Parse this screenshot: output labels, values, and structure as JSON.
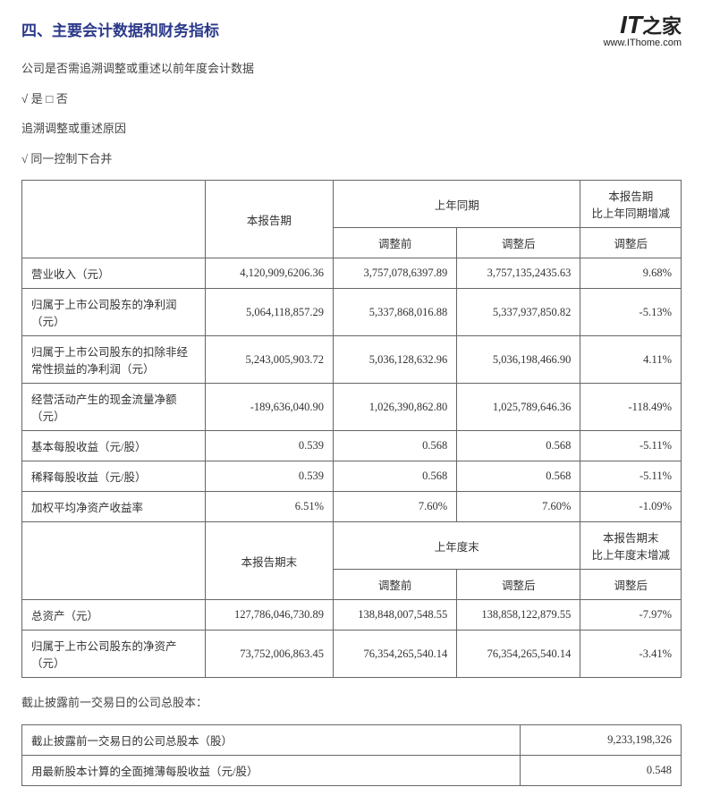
{
  "watermark": {
    "logo_prefix": "IT",
    "logo_suffix": "之家",
    "url": "www.IThome.com"
  },
  "section_title": "四、主要会计数据和财务指标",
  "intro": {
    "line1": "公司是否需追溯调整或重述以前年度会计数据",
    "line2_check": "√ 是 □ 否",
    "line3": "追溯调整或重述原因",
    "line4": "√ 同一控制下合并"
  },
  "table1": {
    "h_current": "本报告期",
    "h_prior": "上年同期",
    "h_change": "本报告期\n比上年同期增减",
    "h_before": "调整前",
    "h_after": "调整后",
    "h_after2": "调整后",
    "rows": [
      {
        "label": "营业收入（元）",
        "curr": "4,120,909,6206.36",
        "before": "3,757,078,6397.89",
        "after": "3,757,135,2435.63",
        "pct": "9.68%"
      },
      {
        "label": "归属于上市公司股东的净利润（元）",
        "curr": "5,064,118,857.29",
        "before": "5,337,868,016.88",
        "after": "5,337,937,850.82",
        "pct": "-5.13%"
      },
      {
        "label": "归属于上市公司股东的扣除非经常性损益的净利润（元）",
        "curr": "5,243,005,903.72",
        "before": "5,036,128,632.96",
        "after": "5,036,198,466.90",
        "pct": "4.11%"
      },
      {
        "label": "经营活动产生的现金流量净额（元）",
        "curr": "-189,636,040.90",
        "before": "1,026,390,862.80",
        "after": "1,025,789,646.36",
        "pct": "-118.49%"
      },
      {
        "label": "基本每股收益（元/股）",
        "curr": "0.539",
        "before": "0.568",
        "after": "0.568",
        "pct": "-5.11%"
      },
      {
        "label": "稀释每股收益（元/股）",
        "curr": "0.539",
        "before": "0.568",
        "after": "0.568",
        "pct": "-5.11%"
      },
      {
        "label": "加权平均净资产收益率",
        "curr": "6.51%",
        "before": "7.60%",
        "after": "7.60%",
        "pct": "-1.09%"
      }
    ],
    "h2_current": "本报告期末",
    "h2_prior": "上年度末",
    "h2_change": "本报告期末\n比上年度末增减",
    "rows2": [
      {
        "label": "总资产（元）",
        "curr": "127,786,046,730.89",
        "before": "138,848,007,548.55",
        "after": "138,858,122,879.55",
        "pct": "-7.97%"
      },
      {
        "label": "归属于上市公司股东的净资产（元）",
        "curr": "73,752,006,863.45",
        "before": "76,354,265,540.14",
        "after": "76,354,265,540.14",
        "pct": "-3.41%"
      }
    ]
  },
  "footer_text": "截止披露前一交易日的公司总股本：",
  "table2": {
    "rows": [
      {
        "label": "截止披露前一交易日的公司总股本（股）",
        "value": "9,233,198,326"
      },
      {
        "label": "用最新股本计算的全面摊薄每股收益（元/股）",
        "value": "0.548"
      }
    ]
  },
  "colors": {
    "title": "#2b3a8a",
    "border": "#666666",
    "text": "#333333"
  }
}
